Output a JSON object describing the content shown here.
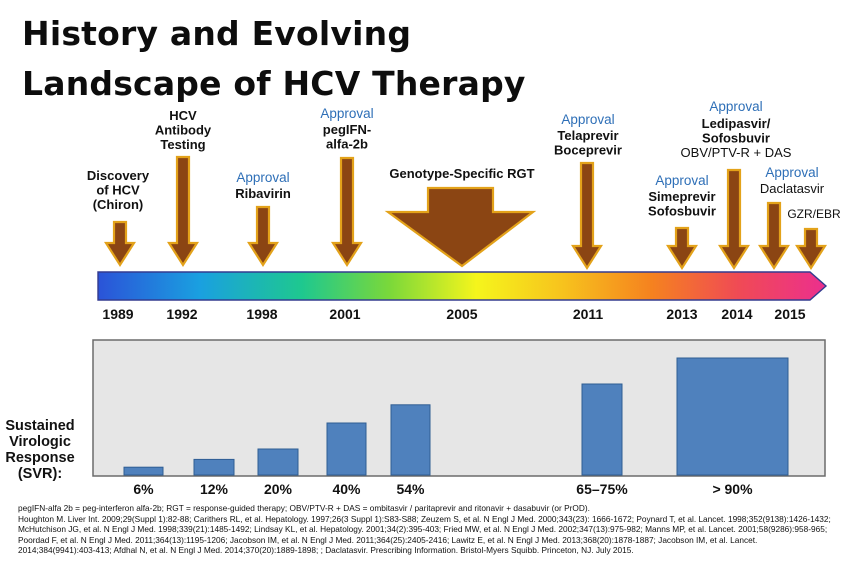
{
  "title": {
    "line1": "History and Evolving",
    "line2": "Landscape of HCV Therapy"
  },
  "colors": {
    "arrow_fill": "#8b4513",
    "arrow_stroke": "#e3a21a",
    "approval_text": "#2e6fb7",
    "bar_fill": "#4f81bd",
    "panel_fill": "#e6e6e6"
  },
  "timeline": {
    "years": [
      "1989",
      "1992",
      "1998",
      "2001",
      "2005",
      "2011",
      "2013",
      "2014",
      "2015"
    ],
    "events": [
      {
        "lines": [
          "Discovery",
          "of HCV",
          "(Chiron)"
        ],
        "approval": ""
      },
      {
        "lines": [
          "HCV",
          "Antibody",
          "Testing"
        ],
        "approval": ""
      },
      {
        "lines": [
          "Ribavirin"
        ],
        "approval": "Approval"
      },
      {
        "lines": [
          "pegIFN-",
          "alfa-2b"
        ],
        "approval": "Approval"
      },
      {
        "lines": [
          "Genotype-Specific RGT"
        ],
        "approval": ""
      },
      {
        "lines": [
          "Telaprevir",
          "Boceprevir"
        ],
        "approval": "Approval"
      },
      {
        "lines": [
          "Simeprevir",
          "Sofosbuvir"
        ],
        "approval": "Approval"
      },
      {
        "lines": [
          "Ledipasvir/",
          "Sofosbuvir",
          "OBV/PTV-R + DAS"
        ],
        "approval": "Approval"
      },
      {
        "lines": [
          "Daclatasvir"
        ],
        "approval": "Approval"
      },
      {
        "lines": [
          "GZR/EBR"
        ],
        "approval": ""
      }
    ]
  },
  "chart_data": {
    "type": "bar",
    "ylabel": "Sustained Virologic Response (SVR):",
    "categories": [
      "6%",
      "12%",
      "20%",
      "40%",
      "54%",
      "65–75%",
      "> 90%"
    ],
    "values": [
      6,
      12,
      20,
      40,
      54,
      70,
      90
    ],
    "ylim": [
      0,
      100
    ],
    "grid": false
  },
  "footnote": [
    "pegIFN-alfa 2b = peg-interferon alfa-2b; RGT = response-guided therapy; OBV/PTV-R + DAS = ombitasvir / paritaprevir and ritonavir + dasabuvir (or PrOD).",
    "Houghton M. Liver Int. 2009;29(Suppl 1):82-88; Carithers RL, et al. Hepatology. 1997;26(3 Suppl 1):S83-S88; Zeuzem S, et al. N Engl J Med. 2000;343(23): 1666-1672; Poynard T, et al. Lancet. 1998;352(9138):1426-1432; McHutchison JG, et al. N Engl J Med. 1998;339(21):1485-1492; Lindsay KL, et al. Hepatology. 2001;34(2):395-403; Fried MW, et al. N Engl J Med. 2002;347(13):975-982; Manns MP, et al. Lancet. 2001;58(9286):958-965; Poordad F, et al. N Engl J Med. 2011;364(13):1195-1206; Jacobson IM, et al. N Engl J Med. 2011;364(25):2405-2416; Lawitz E, et al. N Engl J Med. 2013;368(20):1878-1887; Jacobson IM, et al. Lancet. 2014;384(9941):403-413; Afdhal N, et al. N Engl J Med. 2014;370(20):1889-1898; ; Daclatasvir. Prescribing Information. Bristol-Myers Squibb. Princeton, NJ. July 2015."
  ]
}
